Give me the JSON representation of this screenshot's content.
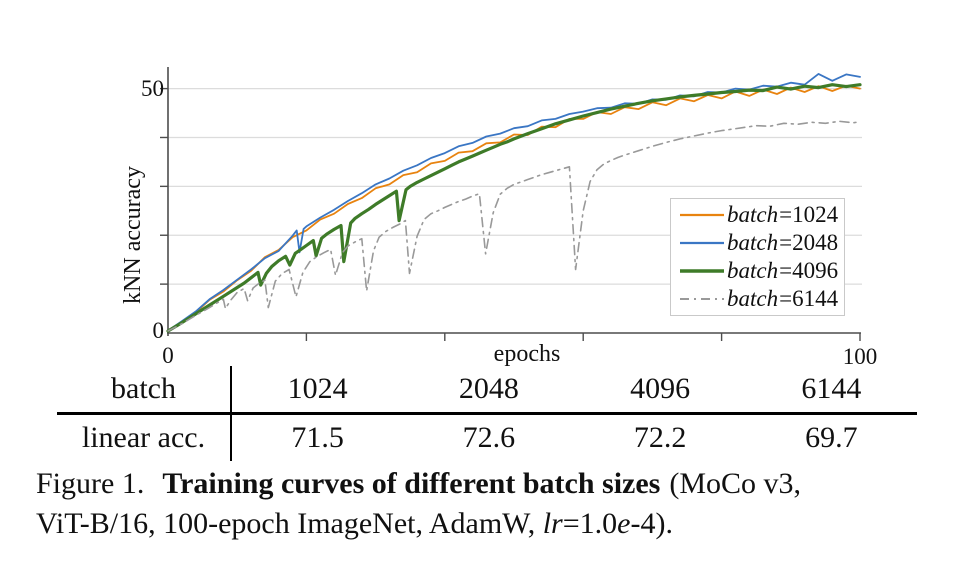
{
  "chart_data": {
    "type": "line",
    "title": "",
    "xlabel": "epochs",
    "ylabel": "kNN accuracy",
    "xlim": [
      0,
      100
    ],
    "ylim": [
      0,
      55
    ],
    "xticks": [
      0,
      20,
      40,
      60,
      80,
      100
    ],
    "yticks": [
      0,
      10,
      20,
      30,
      40,
      50
    ],
    "xtick_labels": [
      "0",
      "100"
    ],
    "ytick_labels": [
      "50",
      "0"
    ],
    "grid": "horizontal",
    "legend_position": "lower right",
    "series": [
      {
        "name": "batch=1024",
        "label_italic": "batch",
        "label_value": "1024",
        "color": "#E8830F",
        "width": 1.8,
        "dash": null,
        "points": [
          [
            0,
            0.4
          ],
          [
            2,
            2.3
          ],
          [
            4,
            4.2
          ],
          [
            6,
            6.8
          ],
          [
            8,
            8.5
          ],
          [
            10,
            10.8
          ],
          [
            12,
            12.7
          ],
          [
            14,
            15.5
          ],
          [
            16,
            17.0
          ],
          [
            18,
            19.6
          ],
          [
            20,
            21.0
          ],
          [
            22,
            23.2
          ],
          [
            24,
            24.4
          ],
          [
            26,
            26.4
          ],
          [
            28,
            27.6
          ],
          [
            30,
            29.6
          ],
          [
            32,
            30.4
          ],
          [
            34,
            32.3
          ],
          [
            36,
            32.9
          ],
          [
            38,
            34.7
          ],
          [
            40,
            35.2
          ],
          [
            42,
            36.9
          ],
          [
            44,
            37.2
          ],
          [
            46,
            38.8
          ],
          [
            48,
            39.0
          ],
          [
            50,
            40.6
          ],
          [
            52,
            40.5
          ],
          [
            54,
            42.2
          ],
          [
            56,
            42.1
          ],
          [
            58,
            43.8
          ],
          [
            60,
            43.8
          ],
          [
            62,
            45.2
          ],
          [
            64,
            44.8
          ],
          [
            66,
            46.2
          ],
          [
            68,
            45.8
          ],
          [
            70,
            47.2
          ],
          [
            72,
            46.6
          ],
          [
            74,
            48.0
          ],
          [
            76,
            47.4
          ],
          [
            78,
            48.7
          ],
          [
            80,
            48.0
          ],
          [
            82,
            49.4
          ],
          [
            84,
            48.5
          ],
          [
            86,
            49.8
          ],
          [
            88,
            48.9
          ],
          [
            90,
            50.2
          ],
          [
            92,
            49.3
          ],
          [
            94,
            50.5
          ],
          [
            96,
            49.5
          ],
          [
            98,
            50.6
          ],
          [
            100,
            50.0
          ]
        ]
      },
      {
        "name": "batch=2048",
        "label_italic": "batch",
        "label_value": "2048",
        "color": "#3A76C4",
        "width": 1.8,
        "dash": null,
        "points": [
          [
            0,
            0.5
          ],
          [
            2,
            2.4
          ],
          [
            4,
            4.4
          ],
          [
            6,
            6.9
          ],
          [
            8,
            8.8
          ],
          [
            10,
            10.9
          ],
          [
            12,
            13.0
          ],
          [
            14,
            15.3
          ],
          [
            16,
            16.8
          ],
          [
            18,
            19.9
          ],
          [
            18.6,
            21.0
          ],
          [
            19,
            16.5
          ],
          [
            19.6,
            21.3
          ],
          [
            20,
            21.8
          ],
          [
            22,
            23.6
          ],
          [
            24,
            25.2
          ],
          [
            26,
            27.0
          ],
          [
            28,
            28.6
          ],
          [
            30,
            30.4
          ],
          [
            32,
            31.6
          ],
          [
            34,
            33.2
          ],
          [
            36,
            34.3
          ],
          [
            38,
            35.8
          ],
          [
            40,
            36.8
          ],
          [
            42,
            38.2
          ],
          [
            44,
            38.9
          ],
          [
            46,
            40.2
          ],
          [
            48,
            40.8
          ],
          [
            50,
            41.9
          ],
          [
            52,
            42.3
          ],
          [
            54,
            43.5
          ],
          [
            56,
            43.8
          ],
          [
            58,
            44.8
          ],
          [
            60,
            45.3
          ],
          [
            62,
            46.0
          ],
          [
            64,
            46.1
          ],
          [
            66,
            47.0
          ],
          [
            68,
            46.9
          ],
          [
            70,
            47.8
          ],
          [
            72,
            47.7
          ],
          [
            74,
            48.6
          ],
          [
            76,
            48.4
          ],
          [
            78,
            49.3
          ],
          [
            80,
            49.2
          ],
          [
            82,
            50.0
          ],
          [
            84,
            49.8
          ],
          [
            86,
            50.6
          ],
          [
            88,
            50.4
          ],
          [
            90,
            51.2
          ],
          [
            92,
            50.8
          ],
          [
            94,
            53.0
          ],
          [
            96,
            51.6
          ],
          [
            98,
            52.9
          ],
          [
            100,
            52.4
          ]
        ]
      },
      {
        "name": "batch=4096",
        "label_italic": "batch",
        "label_value": "4096",
        "color": "#3E7B28",
        "width": 3.2,
        "dash": null,
        "points": [
          [
            0,
            0.4
          ],
          [
            2,
            2.1
          ],
          [
            4,
            3.9
          ],
          [
            6,
            5.7
          ],
          [
            8,
            7.5
          ],
          [
            10,
            9.3
          ],
          [
            11,
            10.2
          ],
          [
            12,
            11.3
          ],
          [
            13,
            12.4
          ],
          [
            13.4,
            9.8
          ],
          [
            14.2,
            12.2
          ],
          [
            15,
            13.6
          ],
          [
            16,
            14.8
          ],
          [
            17,
            15.7
          ],
          [
            17.6,
            13.9
          ],
          [
            18.4,
            16.3
          ],
          [
            19,
            16.9
          ],
          [
            20,
            17.9
          ],
          [
            21,
            18.9
          ],
          [
            21.4,
            15.8
          ],
          [
            22.2,
            19.4
          ],
          [
            23,
            20.3
          ],
          [
            24,
            21.2
          ],
          [
            25,
            22.0
          ],
          [
            25.4,
            14.6
          ],
          [
            26.4,
            22.5
          ],
          [
            27,
            23.4
          ],
          [
            28,
            24.4
          ],
          [
            29,
            25.3
          ],
          [
            30,
            26.3
          ],
          [
            31,
            27.2
          ],
          [
            32,
            28.1
          ],
          [
            33,
            29.0
          ],
          [
            33.4,
            23.0
          ],
          [
            34.4,
            29.3
          ],
          [
            35,
            30.0
          ],
          [
            36,
            30.8
          ],
          [
            37,
            31.5
          ],
          [
            38,
            32.2
          ],
          [
            39,
            32.9
          ],
          [
            40,
            33.6
          ],
          [
            41,
            34.3
          ],
          [
            42,
            35.0
          ],
          [
            43,
            35.6
          ],
          [
            44,
            36.2
          ],
          [
            45,
            36.8
          ],
          [
            46,
            37.4
          ],
          [
            47,
            38.0
          ],
          [
            48,
            38.6
          ],
          [
            49,
            39.1
          ],
          [
            50,
            39.7
          ],
          [
            52,
            40.8
          ],
          [
            54,
            41.8
          ],
          [
            56,
            42.8
          ],
          [
            58,
            43.6
          ],
          [
            60,
            44.4
          ],
          [
            62,
            45.1
          ],
          [
            64,
            45.8
          ],
          [
            66,
            46.4
          ],
          [
            68,
            47.0
          ],
          [
            70,
            47.5
          ],
          [
            72,
            47.9
          ],
          [
            74,
            48.3
          ],
          [
            76,
            48.6
          ],
          [
            78,
            48.9
          ],
          [
            80,
            49.2
          ],
          [
            82,
            49.4
          ],
          [
            84,
            49.7
          ],
          [
            86,
            49.6
          ],
          [
            88,
            50.3
          ],
          [
            90,
            49.9
          ],
          [
            92,
            50.5
          ],
          [
            94,
            50.2
          ],
          [
            96,
            50.8
          ],
          [
            98,
            50.4
          ],
          [
            100,
            50.8
          ]
        ]
      },
      {
        "name": "batch=6144",
        "label_italic": "batch",
        "label_value": "6144",
        "color": "#999999",
        "width": 1.6,
        "dash": "9 5 2 5",
        "points": [
          [
            0,
            0.4
          ],
          [
            2,
            1.9
          ],
          [
            4,
            3.6
          ],
          [
            6,
            5.2
          ],
          [
            7,
            6.1
          ],
          [
            8,
            6.9
          ],
          [
            8.3,
            5.0
          ],
          [
            9,
            6.6
          ],
          [
            10,
            8.3
          ],
          [
            11,
            9.1
          ],
          [
            11.5,
            6.6
          ],
          [
            12.3,
            9.2
          ],
          [
            13,
            10.0
          ],
          [
            14,
            10.8
          ],
          [
            14.5,
            5.2
          ],
          [
            15.5,
            10.6
          ],
          [
            16.5,
            12.2
          ],
          [
            17.5,
            13.0
          ],
          [
            18.5,
            7.4
          ],
          [
            19.5,
            12.4
          ],
          [
            20.5,
            14.6
          ],
          [
            21.5,
            15.6
          ],
          [
            22.5,
            16.4
          ],
          [
            23.5,
            17.1
          ],
          [
            24.2,
            11.8
          ],
          [
            25.2,
            16.4
          ],
          [
            26,
            17.8
          ],
          [
            27,
            18.6
          ],
          [
            28,
            19.3
          ],
          [
            28.7,
            8.6
          ],
          [
            29.7,
            16.8
          ],
          [
            30.5,
            19.6
          ],
          [
            31.5,
            20.8
          ],
          [
            32.5,
            21.6
          ],
          [
            33.5,
            22.3
          ],
          [
            34.3,
            23.0
          ],
          [
            34.9,
            12.2
          ],
          [
            36,
            19.8
          ],
          [
            37,
            23.2
          ],
          [
            38,
            24.4
          ],
          [
            39,
            25.0
          ],
          [
            40,
            25.7
          ],
          [
            41,
            26.3
          ],
          [
            42,
            26.9
          ],
          [
            43,
            27.4
          ],
          [
            44,
            28.0
          ],
          [
            45,
            28.5
          ],
          [
            45.9,
            16.2
          ],
          [
            47,
            24.6
          ],
          [
            48,
            28.4
          ],
          [
            49,
            29.6
          ],
          [
            50,
            30.4
          ],
          [
            51,
            30.9
          ],
          [
            52,
            31.4
          ],
          [
            53,
            31.9
          ],
          [
            54,
            32.4
          ],
          [
            55,
            32.8
          ],
          [
            56,
            33.2
          ],
          [
            57,
            33.6
          ],
          [
            58,
            34.0
          ],
          [
            58.9,
            13.0
          ],
          [
            60,
            25.0
          ],
          [
            61,
            31.0
          ],
          [
            62,
            33.4
          ],
          [
            63,
            34.6
          ],
          [
            64,
            35.3
          ],
          [
            65,
            35.9
          ],
          [
            66,
            36.4
          ],
          [
            68,
            37.3
          ],
          [
            70,
            38.2
          ],
          [
            72,
            39.0
          ],
          [
            74,
            39.7
          ],
          [
            76,
            40.3
          ],
          [
            78,
            40.9
          ],
          [
            80,
            41.4
          ],
          [
            81,
            41.6
          ],
          [
            83,
            42.0
          ],
          [
            85,
            42.4
          ],
          [
            87,
            42.3
          ],
          [
            89,
            42.9
          ],
          [
            91,
            42.7
          ],
          [
            93,
            43.1
          ],
          [
            95,
            42.9
          ],
          [
            97,
            43.3
          ],
          [
            99,
            43.0
          ],
          [
            100,
            43.2
          ]
        ]
      }
    ]
  },
  "table": {
    "row1_label": "batch",
    "row2_label": "linear acc.",
    "batches": [
      "1024",
      "2048",
      "4096",
      "6144"
    ],
    "linear_acc": [
      "71.5",
      "72.6",
      "72.2",
      "69.7"
    ]
  },
  "caption": {
    "figure": "Figure 1.",
    "bold": "Training curves of different batch sizes",
    "after_bold": "(MoCo v3,",
    "line2_before": "ViT-B/16, 100-epoch ImageNet, AdamW, ",
    "lr": "lr",
    "mid": "=1.0",
    "e": "e",
    "tail": "-4)."
  }
}
